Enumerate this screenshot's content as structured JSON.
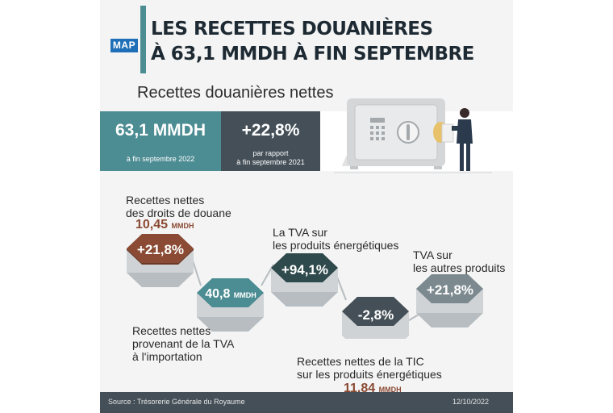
{
  "header": {
    "logo": "MAP",
    "title_line1": "LES RECETTES DOUANIÈRES",
    "title_line2": "À 63,1 MMDH À FIN SEPTEMBRE",
    "subtitle": "Recettes douanières nettes"
  },
  "summary": {
    "total_value": "63,1 MMDH",
    "total_caption": "à fin septembre 2022",
    "growth_value": "+22,8%",
    "growth_caption_line1": "par rapport",
    "growth_caption_line2": "à fin septembre 2021"
  },
  "items": [
    {
      "label_line1": "Recettes nettes",
      "label_line2": "des droits de douane",
      "amount": "10,45",
      "amount_unit": "MMDH",
      "value": "+21,8%",
      "color": "#8a4a33"
    },
    {
      "label_line1": "Recettes nettes",
      "label_line2": "provenant de la TVA",
      "label_line3": "à l'importation",
      "value": "40,8",
      "value_unit": "MMDH",
      "color": "#4c8c93"
    },
    {
      "label_line1": "La TVA sur",
      "label_line2": "les produits énergétiques",
      "value": "+94,1%",
      "color": "#2f4a4c"
    },
    {
      "label_line1": "Recettes nettes de la TIC",
      "label_line2": "sur les produits énergétiques",
      "amount": "11,84",
      "amount_unit": "MMDH",
      "value": "-2,8%",
      "color": "#444f57"
    },
    {
      "label_line1": "TVA sur",
      "label_line2": "les autres produits",
      "value": "+21,8%",
      "color": "#7c8a90"
    }
  ],
  "footer": {
    "source": "Source : Trésorerie Générale du Royaume",
    "date": "12/10/2022"
  }
}
